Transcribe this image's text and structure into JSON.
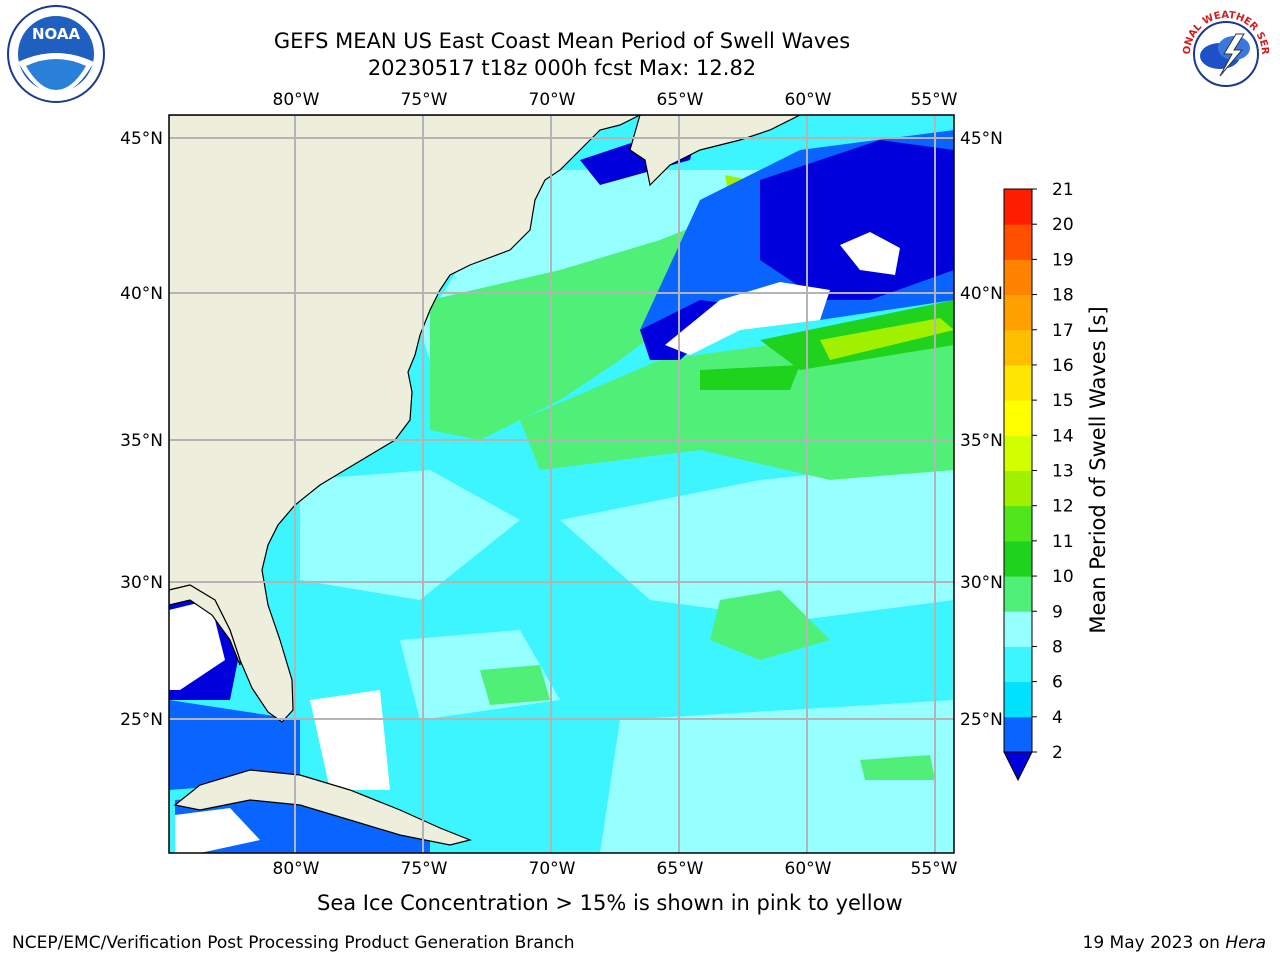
{
  "title_line1": "GEFS MEAN US East Coast Mean Period of Swell Waves",
  "title_line2": "20230517 t18z 000h fcst   Max: 12.82",
  "note": "Sea Ice Concentration > 15% is shown in pink to yellow",
  "footer_left": "NCEP/EMC/Verification Post Processing Product Generation Branch",
  "footer_right_date": "19 May 2023 on ",
  "footer_right_machine": "Hera",
  "logos": {
    "left": {
      "name": "noaa-logo",
      "text": "NOAA"
    },
    "right": {
      "name": "nws-logo",
      "text": "NATIONAL WEATHER SERVICE"
    }
  },
  "axes": {
    "lon_ticks": [
      "80°W",
      "75°W",
      "70°W",
      "65°W",
      "60°W",
      "55°W"
    ],
    "lat_ticks": [
      "45°N",
      "40°N",
      "35°N",
      "30°N",
      "25°N"
    ]
  },
  "colorbar": {
    "label": "Mean Period of Swell Waves [s]",
    "ticks": [
      "2",
      "4",
      "6",
      "8",
      "9",
      "10",
      "11",
      "12",
      "13",
      "14",
      "15",
      "16",
      "17",
      "18",
      "19",
      "20",
      "21"
    ],
    "colors": [
      "#0a64ff",
      "#00e0ff",
      "#3cf5ff",
      "#96ffff",
      "#50f078",
      "#1ed21e",
      "#50e61e",
      "#a0f000",
      "#d2ff00",
      "#ffff00",
      "#ffe600",
      "#ffbe00",
      "#ffa000",
      "#ff8200",
      "#ff5000",
      "#ff1e00"
    ],
    "under_color": "#0000dc"
  }
}
